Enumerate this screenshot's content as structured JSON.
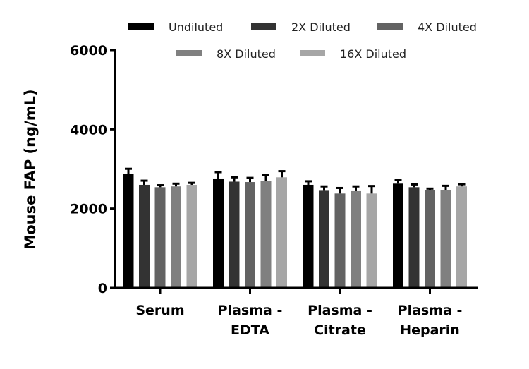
{
  "chart_data": {
    "type": "bar",
    "ylabel": "Mouse FAP (ng/mL)",
    "xlabel": "",
    "ylim": [
      0,
      6000
    ],
    "yticks": [
      "0",
      "2000",
      "4000",
      "6000"
    ],
    "grid": false,
    "legend_position": "top",
    "categories": [
      [
        "Serum"
      ],
      [
        "Plasma -",
        "EDTA"
      ],
      [
        "Plasma -",
        "Citrate"
      ],
      [
        "Plasma -",
        "Heparin"
      ]
    ],
    "series": [
      {
        "name": "Undiluted",
        "color": "#000000",
        "values": [
          2880,
          2760,
          2600,
          2630
        ],
        "errors": [
          125,
          160,
          90,
          85
        ]
      },
      {
        "name": "2X Diluted",
        "color": "#333333",
        "values": [
          2600,
          2680,
          2450,
          2540
        ],
        "errors": [
          105,
          110,
          110,
          70
        ]
      },
      {
        "name": "4X Diluted",
        "color": "#636363",
        "values": [
          2540,
          2670,
          2380,
          2470
        ],
        "errors": [
          50,
          105,
          140,
          35
        ]
      },
      {
        "name": "8X Diluted",
        "color": "#808080",
        "values": [
          2560,
          2700,
          2440,
          2470
        ],
        "errors": [
          70,
          140,
          120,
          105
        ]
      },
      {
        "name": "16X Diluted",
        "color": "#a6a6a6",
        "values": [
          2600,
          2790,
          2380,
          2560
        ],
        "errors": [
          50,
          155,
          190,
          55
        ]
      }
    ]
  }
}
